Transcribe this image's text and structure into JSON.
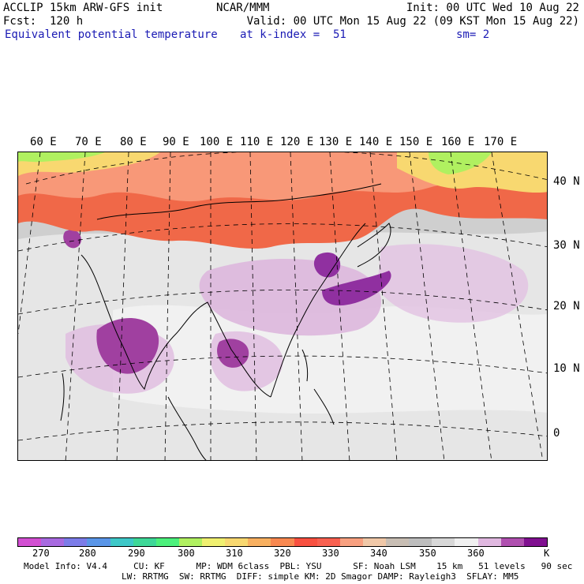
{
  "header": {
    "left1": "ACCLIP 15km ARW-GFS init",
    "left2": "Fcst:  120 h",
    "left3": "Equivalent potential temperature",
    "center1": "NCAR/MMM",
    "right1": "Init: 00 UTC Wed 10 Aug 22",
    "right2": "Valid: 00 UTC Mon 15 Aug 22 (09 KST Mon 15 Aug 22)",
    "level": "at k-index =  51",
    "smooth": "sm= 2"
  },
  "lon_labels": [
    "60 E",
    "70 E",
    "80 E",
    "90 E",
    "100 E",
    "110 E",
    "120 E",
    "130 E",
    "140 E",
    "150 E",
    "160 E",
    "170 E"
  ],
  "lat_labels": [
    "40 N",
    "30 N",
    "20 N",
    "10 N",
    "0"
  ],
  "colorbar": {
    "colors": [
      "#d24fd2",
      "#a86ae0",
      "#7c7ce8",
      "#5a96e8",
      "#3ec8c8",
      "#3ed898",
      "#4cf07c",
      "#b0f060",
      "#f0f070",
      "#f8d870",
      "#f8b060",
      "#f88850",
      "#f85040",
      "#f86050",
      "#f8a080",
      "#f0c8a8",
      "#c8beb4",
      "#bebebe",
      "#d8d8d8",
      "#f0f0f0",
      "#e0b8e0",
      "#b050b0",
      "#801090"
    ],
    "labels": [
      "270",
      "280",
      "290",
      "300",
      "310",
      "320",
      "330",
      "340",
      "350",
      "360",
      "K"
    ]
  },
  "footer": {
    "line1": "Model Info: V4.4     CU: KF      MP: WDM 6class  PBL: YSU      SF: Noah LSM    15 km   51 levels   90 sec",
    "line2": "LW: RRTMG  SW: RRTMG  DIFF: simple KM: 2D Smagor DAMP: Rayleigh3  SFLAY: MM5"
  }
}
